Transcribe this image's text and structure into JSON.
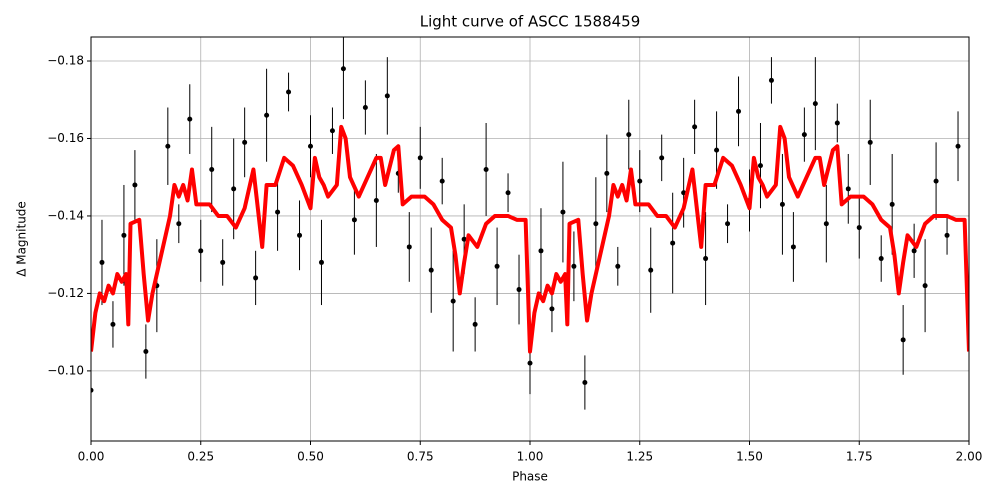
{
  "chart_data": {
    "type": "line",
    "title": "Light curve of ASCC 1588459",
    "xlabel": "Phase",
    "ylabel": "Δ Magnitude",
    "xlim": [
      0,
      2
    ],
    "ylim": [
      -0.0819,
      -0.1862
    ],
    "grid": true,
    "xticks": [
      {
        "value": 0,
        "label": "0.00"
      },
      {
        "value": 0.25,
        "label": "0.25"
      },
      {
        "value": 0.5,
        "label": "0.50"
      },
      {
        "value": 0.75,
        "label": "0.75"
      },
      {
        "value": 1,
        "label": "1.00"
      },
      {
        "value": 1.25,
        "label": "1.25"
      },
      {
        "value": 1.5,
        "label": "1.50"
      },
      {
        "value": 1.75,
        "label": "1.75"
      },
      {
        "value": 2,
        "label": "2.00"
      }
    ],
    "yticks": [
      {
        "value": -0.18,
        "label": "−0.18"
      },
      {
        "value": -0.16,
        "label": "−0.16"
      },
      {
        "value": -0.14,
        "label": "−0.14"
      },
      {
        "value": -0.12,
        "label": "−0.12"
      },
      {
        "value": -0.1,
        "label": "−0.10"
      }
    ],
    "series": [
      {
        "type": "errorbar",
        "color": "#000000",
        "x": [
          0.0,
          0.025,
          0.05,
          0.075,
          0.1,
          0.125,
          0.15,
          0.175,
          0.2,
          0.225,
          0.25,
          0.275,
          0.3,
          0.325,
          0.35,
          0.375,
          0.4,
          0.425,
          0.45,
          0.475,
          0.5,
          0.525,
          0.55,
          0.575,
          0.6,
          0.625,
          0.65,
          0.675,
          0.7,
          0.725,
          0.75,
          0.775,
          0.8,
          0.825,
          0.85,
          0.875,
          0.9,
          0.925,
          0.95,
          0.975,
          1.0,
          1.025,
          1.05,
          1.075,
          1.1,
          1.125,
          1.15,
          1.175,
          1.2,
          1.225,
          1.25,
          1.275,
          1.3,
          1.325,
          1.35,
          1.375,
          1.4,
          1.425,
          1.45,
          1.475,
          1.5,
          1.525,
          1.55,
          1.575,
          1.6,
          1.625,
          1.65,
          1.675,
          1.7,
          1.725,
          1.75,
          1.775,
          1.8,
          1.825,
          1.85,
          1.875,
          1.9,
          1.925,
          1.95,
          1.975
        ],
        "values": [
          -0.095,
          -0.128,
          -0.112,
          -0.135,
          -0.148,
          -0.105,
          -0.122,
          -0.158,
          -0.138,
          -0.165,
          -0.131,
          -0.152,
          -0.128,
          -0.147,
          -0.159,
          -0.124,
          -0.166,
          -0.141,
          -0.172,
          -0.135,
          -0.158,
          -0.128,
          -0.162,
          -0.178,
          -0.139,
          -0.168,
          -0.144,
          -0.171,
          -0.151,
          -0.132,
          -0.155,
          -0.126,
          -0.149,
          -0.118,
          -0.134,
          -0.112,
          -0.152,
          -0.127,
          -0.146,
          -0.121,
          -0.102,
          -0.131,
          -0.116,
          -0.141,
          -0.127,
          -0.097,
          -0.138,
          -0.151,
          -0.127,
          -0.161,
          -0.149,
          -0.126,
          -0.155,
          -0.133,
          -0.146,
          -0.163,
          -0.129,
          -0.157,
          -0.138,
          -0.167,
          -0.144,
          -0.153,
          -0.175,
          -0.143,
          -0.132,
          -0.161,
          -0.169,
          -0.138,
          -0.164,
          -0.147,
          -0.137,
          -0.159,
          -0.129,
          -0.143,
          -0.108,
          -0.131,
          -0.122,
          -0.149,
          -0.135,
          -0.158
        ],
        "errors": [
          0.008,
          0.011,
          0.006,
          0.013,
          0.009,
          0.007,
          0.012,
          0.01,
          0.005,
          0.009,
          0.008,
          0.011,
          0.006,
          0.013,
          0.009,
          0.007,
          0.012,
          0.01,
          0.005,
          0.009,
          0.008,
          0.011,
          0.006,
          0.013,
          0.009,
          0.007,
          0.012,
          0.01,
          0.005,
          0.009,
          0.008,
          0.011,
          0.006,
          0.013,
          0.009,
          0.007,
          0.012,
          0.01,
          0.005,
          0.009,
          0.008,
          0.011,
          0.006,
          0.013,
          0.009,
          0.007,
          0.012,
          0.01,
          0.005,
          0.009,
          0.008,
          0.011,
          0.006,
          0.013,
          0.009,
          0.007,
          0.012,
          0.01,
          0.005,
          0.009,
          0.008,
          0.011,
          0.006,
          0.013,
          0.009,
          0.007,
          0.012,
          0.01,
          0.005,
          0.009,
          0.008,
          0.011,
          0.006,
          0.013,
          0.009,
          0.007,
          0.012,
          0.01,
          0.005,
          0.009
        ]
      },
      {
        "type": "line",
        "color": "#ff0000",
        "x": [
          0,
          0.01,
          0.02,
          0.03,
          0.04,
          0.05,
          0.06,
          0.07,
          0.08,
          0.085,
          0.09,
          0.11,
          0.12,
          0.13,
          0.14,
          0.16,
          0.18,
          0.19,
          0.2,
          0.21,
          0.22,
          0.23,
          0.24,
          0.27,
          0.29,
          0.31,
          0.33,
          0.35,
          0.37,
          0.39,
          0.4,
          0.42,
          0.44,
          0.46,
          0.48,
          0.5,
          0.51,
          0.52,
          0.53,
          0.54,
          0.56,
          0.57,
          0.58,
          0.59,
          0.61,
          0.63,
          0.65,
          0.66,
          0.67,
          0.69,
          0.7,
          0.71,
          0.73,
          0.76,
          0.78,
          0.8,
          0.82,
          0.83,
          0.84,
          0.85,
          0.86,
          0.88,
          0.9,
          0.92,
          0.95,
          0.97,
          0.99,
          1,
          1.01,
          1.02,
          1.03,
          1.04,
          1.05,
          1.06,
          1.07,
          1.08,
          1.085,
          1.09,
          1.11,
          1.12,
          1.13,
          1.14,
          1.16,
          1.18,
          1.19,
          1.2,
          1.21,
          1.22,
          1.23,
          1.24,
          1.27,
          1.29,
          1.31,
          1.33,
          1.35,
          1.37,
          1.39,
          1.4,
          1.42,
          1.44,
          1.46,
          1.48,
          1.5,
          1.51,
          1.52,
          1.53,
          1.54,
          1.56,
          1.57,
          1.58,
          1.59,
          1.61,
          1.63,
          1.65,
          1.66,
          1.67,
          1.69,
          1.7,
          1.71,
          1.73,
          1.76,
          1.78,
          1.8,
          1.82,
          1.83,
          1.84,
          1.85,
          1.86,
          1.88,
          1.9,
          1.92,
          1.95,
          1.97,
          1.99,
          2
        ],
        "values": [
          -0.105,
          -0.115,
          -0.12,
          -0.118,
          -0.122,
          -0.12,
          -0.125,
          -0.123,
          -0.125,
          -0.112,
          -0.138,
          -0.139,
          -0.125,
          -0.113,
          -0.12,
          -0.13,
          -0.14,
          -0.148,
          -0.145,
          -0.148,
          -0.144,
          -0.152,
          -0.143,
          -0.143,
          -0.14,
          -0.14,
          -0.137,
          -0.142,
          -0.152,
          -0.132,
          -0.148,
          -0.148,
          -0.155,
          -0.153,
          -0.148,
          -0.142,
          -0.155,
          -0.15,
          -0.148,
          -0.145,
          -0.148,
          -0.163,
          -0.16,
          -0.15,
          -0.145,
          -0.15,
          -0.155,
          -0.155,
          -0.148,
          -0.157,
          -0.158,
          -0.143,
          -0.145,
          -0.145,
          -0.143,
          -0.139,
          -0.137,
          -0.13,
          -0.12,
          -0.128,
          -0.135,
          -0.132,
          -0.138,
          -0.14,
          -0.14,
          -0.139,
          -0.139,
          -0.105,
          -0.115,
          -0.12,
          -0.118,
          -0.122,
          -0.12,
          -0.125,
          -0.123,
          -0.125,
          -0.112,
          -0.138,
          -0.139,
          -0.125,
          -0.113,
          -0.12,
          -0.13,
          -0.14,
          -0.148,
          -0.145,
          -0.148,
          -0.144,
          -0.152,
          -0.143,
          -0.143,
          -0.14,
          -0.14,
          -0.137,
          -0.142,
          -0.152,
          -0.132,
          -0.148,
          -0.148,
          -0.155,
          -0.153,
          -0.148,
          -0.142,
          -0.155,
          -0.15,
          -0.148,
          -0.145,
          -0.148,
          -0.163,
          -0.16,
          -0.15,
          -0.145,
          -0.15,
          -0.155,
          -0.155,
          -0.148,
          -0.157,
          -0.158,
          -0.143,
          -0.145,
          -0.145,
          -0.143,
          -0.139,
          -0.137,
          -0.13,
          -0.12,
          -0.128,
          -0.135,
          -0.132,
          -0.138,
          -0.14,
          -0.14,
          -0.139,
          -0.139,
          -0.105
        ]
      }
    ]
  }
}
